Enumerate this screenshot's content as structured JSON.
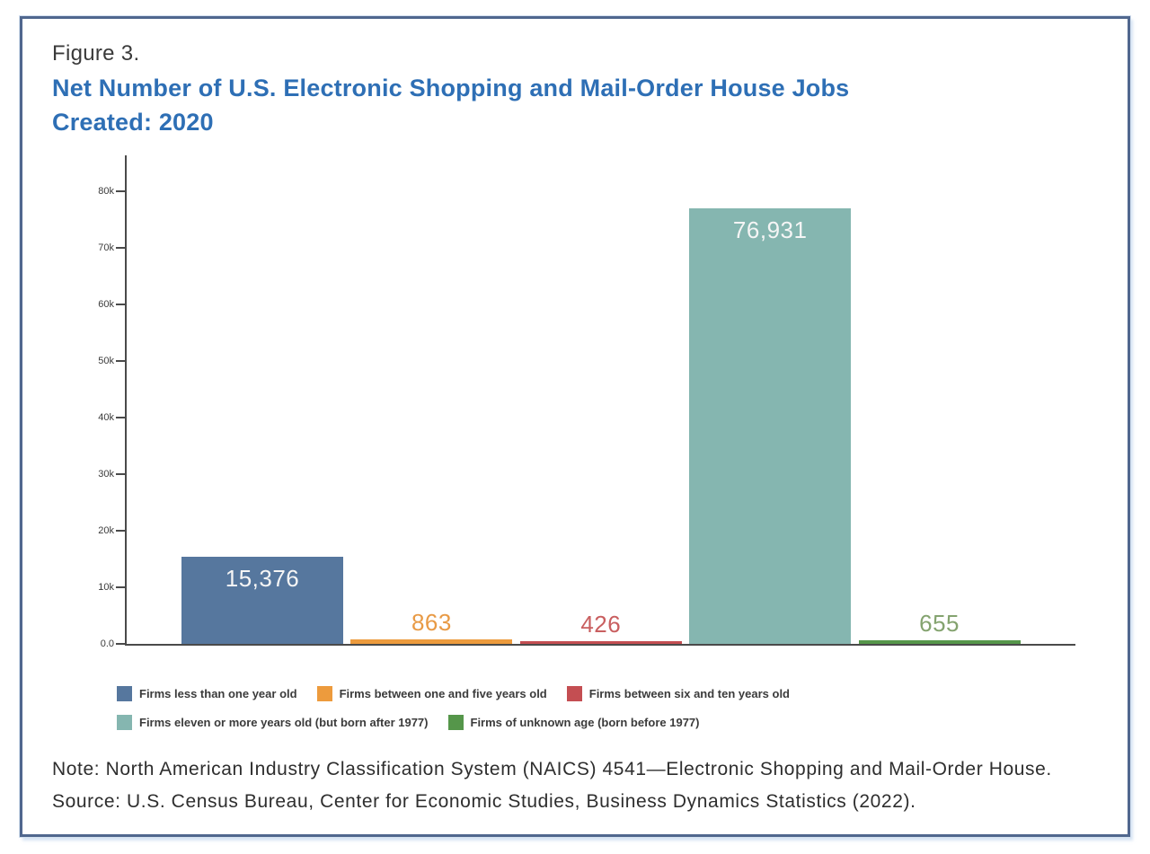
{
  "figure": {
    "label": "Figure 3.",
    "title_line1": "Net Number of U.S. Electronic Shopping and Mail-Order House Jobs",
    "title_line2": "Created: 2020",
    "title_color": "#2E6FB5",
    "frame_border_color": "#50678E"
  },
  "chart_data": {
    "type": "bar",
    "title": "Net Number of U.S. Electronic Shopping and Mail-Order House Jobs Created: 2020",
    "xlabel": "",
    "ylabel": "",
    "categories": [
      "Firms less than one year old",
      "Firms between one and five years old",
      "Firms between six and ten years old",
      "Firms eleven or more years old (but born after 1977)",
      "Firms of unknown age (born before 1977)"
    ],
    "values": [
      15376,
      863,
      426,
      76931,
      655
    ],
    "value_labels": [
      "15,376",
      "863",
      "426",
      "76,931",
      "655"
    ],
    "bar_colors": [
      "#56779E",
      "#ED9B3D",
      "#C44E52",
      "#85B6B0",
      "#55964A"
    ],
    "value_label_colors": [
      "#F5F5F5",
      "#E89A45",
      "#C95F60",
      "#F5F5F5",
      "#84A36F"
    ],
    "ylim": [
      0,
      86500
    ],
    "yticks": [
      {
        "value": 0,
        "label": "0.0"
      },
      {
        "value": 10000,
        "label": "10k"
      },
      {
        "value": 20000,
        "label": "20k"
      },
      {
        "value": 30000,
        "label": "30k"
      },
      {
        "value": 40000,
        "label": "40k"
      },
      {
        "value": 50000,
        "label": "50k"
      },
      {
        "value": 60000,
        "label": "60k"
      },
      {
        "value": 70000,
        "label": "70k"
      },
      {
        "value": 80000,
        "label": "80k"
      }
    ],
    "grid": false,
    "legend_position": "bottom",
    "axis_color": "#4a4a4a"
  },
  "legend": {
    "rows": [
      [
        {
          "label": "Firms less than one year old",
          "color": "#56779E"
        },
        {
          "label": "Firms between one and five years old",
          "color": "#ED9B3D"
        },
        {
          "label": "Firms between six and ten years old",
          "color": "#C44E52"
        }
      ],
      [
        {
          "label": "Firms eleven or more years old (but born after 1977)",
          "color": "#85B6B0"
        },
        {
          "label": "Firms of unknown age (born before 1977)",
          "color": "#55964A"
        }
      ]
    ]
  },
  "notes": {
    "note": "Note: North American Industry Classification System (NAICS) 4541—Electronic Shopping and Mail-Order House.",
    "source": "Source: U.S. Census Bureau, Center for Economic Studies, Business Dynamics Statistics (2022)."
  }
}
